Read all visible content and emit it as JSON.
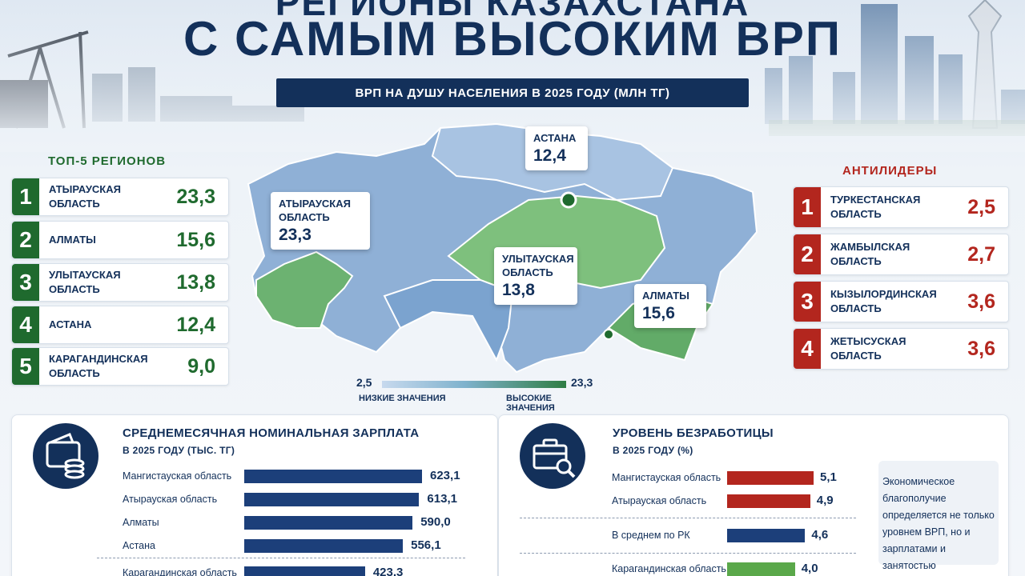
{
  "header": {
    "title_cut": "РЕГИОНЫ КАЗАХСТАНА",
    "title": "С САМЫМ ВЫСОКИМ ВРП",
    "subtitle": "ВРП НА ДУШУ НАСЕЛЕНИЯ В 2025 ГОДУ (МЛН ТГ)"
  },
  "top5": {
    "heading": "ТОП-5 РЕГИОНОВ",
    "items": [
      {
        "rank": "1",
        "name": "АТЫРАУСКАЯ\nОБЛАСТЬ",
        "value": "23,3"
      },
      {
        "rank": "2",
        "name": "АЛМАТЫ",
        "value": "15,6"
      },
      {
        "rank": "3",
        "name": "УЛЫТАУСКАЯ\nОБЛАСТЬ",
        "value": "13,8"
      },
      {
        "rank": "4",
        "name": "АСТАНА",
        "value": "12,4"
      },
      {
        "rank": "5",
        "name": "КАРАГАНДИНСКАЯ\nОБЛАСТЬ",
        "value": "9,0"
      }
    ]
  },
  "antileaders": {
    "heading": "АНТИЛИДЕРЫ",
    "items": [
      {
        "rank": "1",
        "name": "ТУРКЕСТАНСКАЯ\nОБЛАСТЬ",
        "value": "2,5"
      },
      {
        "rank": "2",
        "name": "ЖАМБЫЛСКАЯ\nОБЛАСТЬ",
        "value": "2,7"
      },
      {
        "rank": "3",
        "name": "КЫЗЫЛОРДИНСКАЯ\nОБЛАСТЬ",
        "value": "3,6"
      },
      {
        "rank": "4",
        "name": "ЖЕТЫСУСКАЯ\nОБЛАСТЬ",
        "value": "3,6"
      }
    ]
  },
  "map": {
    "callouts": [
      {
        "name": "АСТАНА",
        "value": "12,4"
      },
      {
        "name": "АТЫРАУСКАЯ\nОБЛАСТЬ",
        "value": "23,3"
      },
      {
        "name": "УЛЫТАУСКАЯ\nОБЛАСТЬ",
        "value": "13,8"
      },
      {
        "name": "АЛМАТЫ",
        "value": "15,6"
      }
    ],
    "colors": {
      "low": "#c7d9ee",
      "mid": "#7fb2cd",
      "high": "#2f7d44"
    }
  },
  "legend": {
    "min": "2,5",
    "max": "23,3",
    "low_label": "НИЗКИЕ ЗНАЧЕНИЯ",
    "high_label": "ВЫСОКИЕ ЗНАЧЕНИЯ"
  },
  "salary": {
    "title": "СРЕДНЕМЕСЯЧНАЯ НОМИНАЛЬНАЯ ЗАРПЛАТА",
    "subtitle": "В 2025 ГОДУ (ТЫС. ТГ)",
    "icon": "wallet-coins-icon",
    "color": "#1c3f7a",
    "rows": [
      {
        "label": "Мангистауская область",
        "value": 623.1,
        "value_text": "623,1"
      },
      {
        "label": "Атырауская область",
        "value": 613.1,
        "value_text": "613,1"
      },
      {
        "label": "Алматы",
        "value": 590.0,
        "value_text": "590,0"
      },
      {
        "label": "Астана",
        "value": 556.1,
        "value_text": "556,1"
      },
      {
        "label": "Карагандинская область",
        "value": 423.3,
        "value_text": "423,3"
      }
    ]
  },
  "unemployment": {
    "title": "УРОВЕНЬ БЕЗРАБОТИЦЫ",
    "subtitle": "В 2025 ГОДУ (%)",
    "icon": "briefcase-search-icon",
    "rows": [
      {
        "label": "Мангистауская область",
        "value": 5.1,
        "value_text": "5,1",
        "color": "#b3261e"
      },
      {
        "label": "Атырауская область",
        "value": 4.9,
        "value_text": "4,9",
        "color": "#b3261e"
      },
      {
        "label": "В среднем по РК",
        "value": 4.6,
        "value_text": "4,6",
        "color": "#1c3f7a"
      },
      {
        "label": "Карагандинская область",
        "value": 4.0,
        "value_text": "4,0",
        "color": "#5aa84a"
      }
    ],
    "note": "Экономическое благополучие определяется не только уровнем ВРП, но и зарплатами и занятостью"
  }
}
